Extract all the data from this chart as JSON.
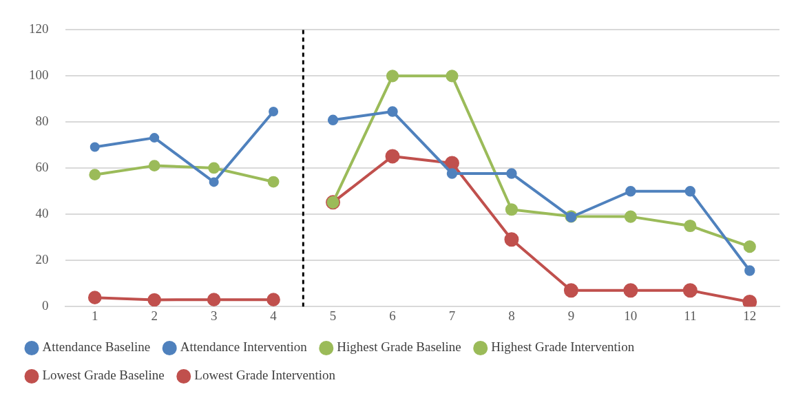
{
  "chart_data": {
    "type": "line",
    "x": [
      1,
      2,
      3,
      4,
      5,
      6,
      7,
      8,
      9,
      10,
      11,
      12
    ],
    "xlim": [
      0.5,
      12.5
    ],
    "xticks": [
      1,
      2,
      3,
      4,
      5,
      6,
      7,
      8,
      9,
      10,
      11,
      12
    ],
    "ylim": [
      0,
      120
    ],
    "yticks": [
      0,
      20,
      40,
      60,
      80,
      100,
      120
    ],
    "grid": "y",
    "legend": "bottom",
    "marker": "circle",
    "line_style": "solid",
    "ref_lines": [
      {
        "axis": "x",
        "value": 4.5,
        "color": "#000000",
        "line_style": "dashed"
      }
    ],
    "series": [
      {
        "name": "Attendance Baseline",
        "color": "#4f81bd",
        "values": [
          69.2,
          73.2,
          54,
          84.6,
          null,
          null,
          null,
          null,
          null,
          null,
          null,
          null
        ]
      },
      {
        "name": "Attendance Intervention",
        "color": "#4f81bd",
        "values": [
          null,
          null,
          null,
          null,
          80.9,
          84.6,
          57.7,
          57.7,
          38.8,
          50,
          50,
          15.6
        ]
      },
      {
        "name": "Highest Grade Baseline",
        "color": "#9bbb59",
        "values": [
          57.2,
          61.1,
          60.1,
          54.1,
          null,
          null,
          null,
          null,
          null,
          null,
          null,
          null
        ]
      },
      {
        "name": "Highest Grade Intervention",
        "color": "#9bbb59",
        "values": [
          null,
          null,
          null,
          null,
          45.2,
          100,
          100,
          42.1,
          39.1,
          39,
          35,
          26
        ]
      },
      {
        "name": "Lowest Grade Baseline",
        "color": "#c0504d",
        "values": [
          3.9,
          2.9,
          3,
          3,
          null,
          null,
          null,
          null,
          null,
          null,
          null,
          null
        ]
      },
      {
        "name": "Lowest Grade Intervention",
        "color": "#c0504d",
        "values": [
          null,
          null,
          null,
          null,
          45.2,
          65.2,
          62.2,
          29.1,
          7,
          7,
          7,
          2
        ]
      }
    ]
  }
}
